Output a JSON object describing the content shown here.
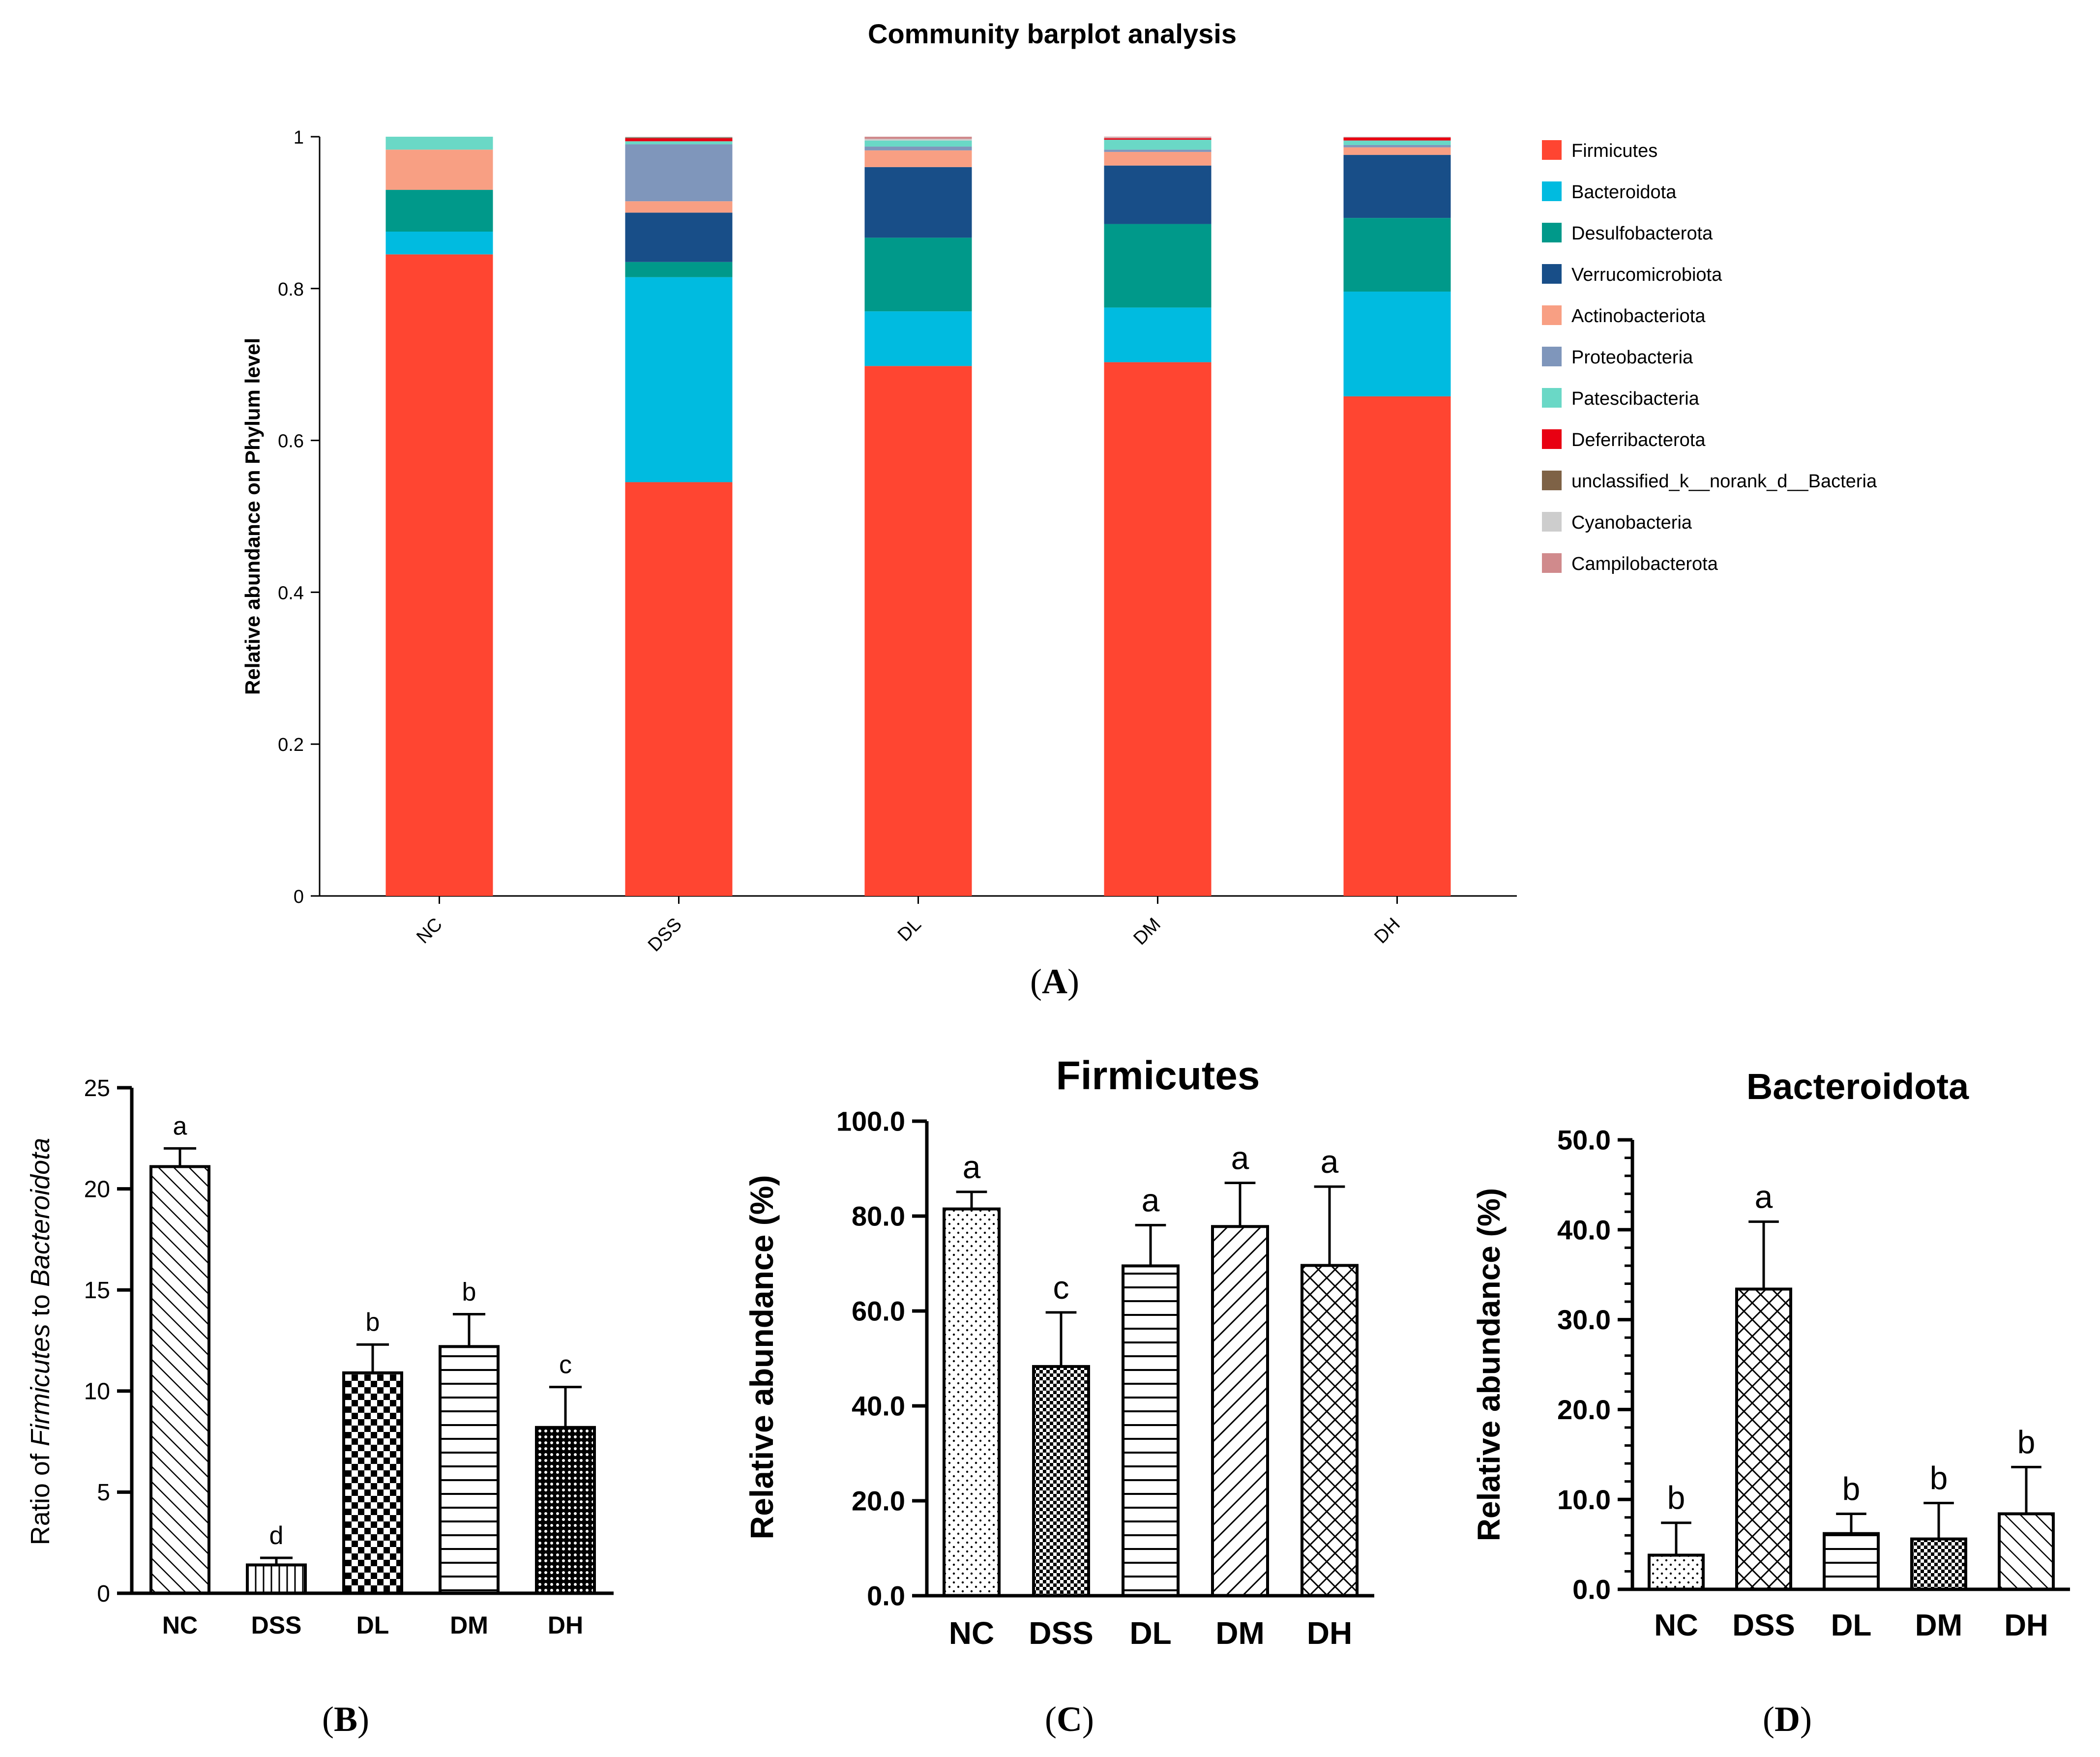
{
  "figure": {
    "panel_labels": {
      "A": "A",
      "B": "B",
      "C": "C",
      "D": "D"
    }
  },
  "chart_data": [
    {
      "id": "A",
      "type": "bar",
      "stacked": true,
      "title": "Community barplot analysis",
      "xlabel": "",
      "ylabel": "Relative abundance on Phylum level",
      "categories": [
        "NC",
        "DSS",
        "DL",
        "DM",
        "DH"
      ],
      "ylim": [
        0,
        1
      ],
      "yticks": [
        "0",
        "0.2",
        "0.4",
        "0.6",
        "0.8",
        "1"
      ],
      "legend_position": "right",
      "series": [
        {
          "name": "Firmicutes",
          "color": "#ff4531",
          "values": [
            0.845,
            0.545,
            0.698,
            0.703,
            0.658
          ]
        },
        {
          "name": "Bacteroidota",
          "color": "#00bbe0",
          "values": [
            0.03,
            0.27,
            0.072,
            0.072,
            0.138
          ]
        },
        {
          "name": "Desulfobacterota",
          "color": "#00998a",
          "values": [
            0.055,
            0.02,
            0.097,
            0.11,
            0.097
          ]
        },
        {
          "name": "Verrucomicrobiota",
          "color": "#184e88",
          "values": [
            0.0,
            0.065,
            0.093,
            0.077,
            0.083
          ]
        },
        {
          "name": "Actinobacteriota",
          "color": "#f89f83",
          "values": [
            0.053,
            0.015,
            0.022,
            0.018,
            0.01
          ]
        },
        {
          "name": "Proteobacteria",
          "color": "#7f96bb",
          "values": [
            0.0,
            0.075,
            0.005,
            0.003,
            0.003
          ]
        },
        {
          "name": "Patescibacteria",
          "color": "#6ad8c6",
          "values": [
            0.017,
            0.004,
            0.008,
            0.013,
            0.006
          ]
        },
        {
          "name": "Deferribacterota",
          "color": "#e80012",
          "values": [
            0.0,
            0.004,
            0.0,
            0.002,
            0.004
          ]
        },
        {
          "name": "unclassified_k__norank_d__Bacteria",
          "color": "#7e6246",
          "values": [
            0.0,
            0.001,
            0.0,
            0.0,
            0.0
          ]
        },
        {
          "name": "Cyanobacteria",
          "color": "#cdcdcd",
          "values": [
            0.0,
            0.001,
            0.002,
            0.001,
            0.001
          ]
        },
        {
          "name": "Campilobacterota",
          "color": "#d08a8c",
          "values": [
            0.0,
            0.0,
            0.003,
            0.001,
            0.0
          ]
        }
      ]
    },
    {
      "id": "B",
      "type": "bar",
      "title": "",
      "xlabel": "",
      "ylabel_prefix": "Ratio of ",
      "ylabel_italic_1": "Firmicutes",
      "ylabel_middle": " to ",
      "ylabel_italic_2": "Bacteroidota",
      "categories": [
        "NC",
        "DSS",
        "DL",
        "DM",
        "DH"
      ],
      "values": [
        21.1,
        1.4,
        10.9,
        12.2,
        8.2
      ],
      "errors": [
        0.9,
        0.35,
        1.4,
        1.6,
        2.0
      ],
      "letters": [
        "a",
        "d",
        "b",
        "b",
        "c"
      ],
      "patterns": [
        "diag",
        "vlines",
        "checker",
        "hlines",
        "dense-dots"
      ],
      "ylim": [
        0,
        25
      ],
      "yticks": [
        "0",
        "5",
        "10",
        "15",
        "20",
        "25"
      ]
    },
    {
      "id": "C",
      "type": "bar",
      "title": "Firmicutes",
      "xlabel": "",
      "ylabel": "Relative abundance (%)",
      "categories": [
        "NC",
        "DSS",
        "DL",
        "DM",
        "DH"
      ],
      "values": [
        81.5,
        48.3,
        69.5,
        77.8,
        69.6
      ],
      "errors": [
        3.6,
        11.4,
        8.6,
        9.2,
        16.6
      ],
      "letters": [
        "a",
        "c",
        "a",
        "a",
        "a"
      ],
      "patterns": [
        "sparse-dots",
        "checker-fine",
        "hlines",
        "diag-back",
        "crosshatch"
      ],
      "ylim": [
        0,
        100
      ],
      "yticks": [
        "0.0",
        "20.0",
        "40.0",
        "60.0",
        "80.0",
        "100.0"
      ]
    },
    {
      "id": "D",
      "type": "bar",
      "title": "Bacteroidota",
      "xlabel": "",
      "ylabel": "Relative abundance (%)",
      "categories": [
        "NC",
        "DSS",
        "DL",
        "DM",
        "DH"
      ],
      "values": [
        3.8,
        33.4,
        6.2,
        5.6,
        8.4
      ],
      "errors": [
        3.6,
        7.5,
        2.2,
        4.0,
        5.2
      ],
      "letters": [
        "b",
        "a",
        "b",
        "b",
        "b"
      ],
      "patterns": [
        "sparse-dots",
        "crosshatch",
        "hlines",
        "checker-fine",
        "diag"
      ],
      "ylim": [
        0,
        50
      ],
      "yticks": [
        "0.0",
        "10.0",
        "20.0",
        "30.0",
        "40.0",
        "50.0"
      ]
    }
  ]
}
